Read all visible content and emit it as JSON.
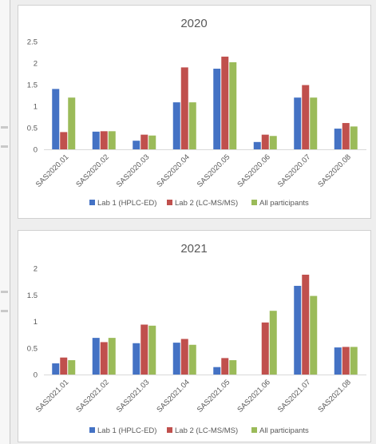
{
  "chart_data": [
    {
      "type": "bar",
      "title": "2020",
      "categories": [
        "SAS2020.01",
        "SAS2020.02",
        "SAS2020.03",
        "SAS2020.04",
        "SAS2020.05",
        "SAS2020.06",
        "SAS2020.07",
        "SAS2020.08"
      ],
      "series": [
        {
          "name": "Lab 1 (HPLC-ED)",
          "color": "#4472C4",
          "values": [
            1.4,
            0.41,
            0.2,
            1.09,
            1.87,
            0.17,
            1.2,
            0.48
          ]
        },
        {
          "name": "Lab 2 (LC-MS/MS)",
          "color": "#C0504D",
          "values": [
            0.4,
            0.42,
            0.34,
            1.9,
            2.15,
            0.34,
            1.49,
            0.61
          ]
        },
        {
          "name": "All participants",
          "color": "#9BBB59",
          "values": [
            1.2,
            0.42,
            0.32,
            1.09,
            2.02,
            0.31,
            1.2,
            0.53
          ]
        }
      ],
      "ylim": [
        0,
        2.5
      ],
      "yticks": [
        "0",
        "0.5",
        "1",
        "1.5",
        "2",
        "2.5"
      ],
      "ytick_values": [
        0,
        0.5,
        1,
        1.5,
        2,
        2.5
      ],
      "legend_position": "bottom",
      "grid": false
    },
    {
      "type": "bar",
      "title": "2021",
      "categories": [
        "SAS2021.01",
        "SAS2021.02",
        "SAS2021.03",
        "SAS2021.04",
        "SAS2021.05",
        "SAS2021.06",
        "SAS2021.07",
        "SAS2021.08"
      ],
      "series": [
        {
          "name": "Lab 1 (HPLC-ED)",
          "color": "#4472C4",
          "values": [
            0.21,
            0.69,
            0.59,
            0.6,
            0.14,
            0,
            1.67,
            0.51
          ]
        },
        {
          "name": "Lab 2 (LC-MS/MS)",
          "color": "#C0504D",
          "values": [
            0.32,
            0.61,
            0.94,
            0.67,
            0.31,
            0.98,
            1.88,
            0.52
          ]
        },
        {
          "name": "All participants",
          "color": "#9BBB59",
          "values": [
            0.27,
            0.69,
            0.92,
            0.56,
            0.27,
            1.2,
            1.48,
            0.52
          ]
        }
      ],
      "ylim": [
        0,
        2
      ],
      "yticks": [
        "0",
        "0.5",
        "1",
        "1.5",
        "2"
      ],
      "ytick_values": [
        0,
        0.5,
        1,
        1.5,
        2
      ],
      "legend_position": "bottom",
      "grid": false
    }
  ]
}
